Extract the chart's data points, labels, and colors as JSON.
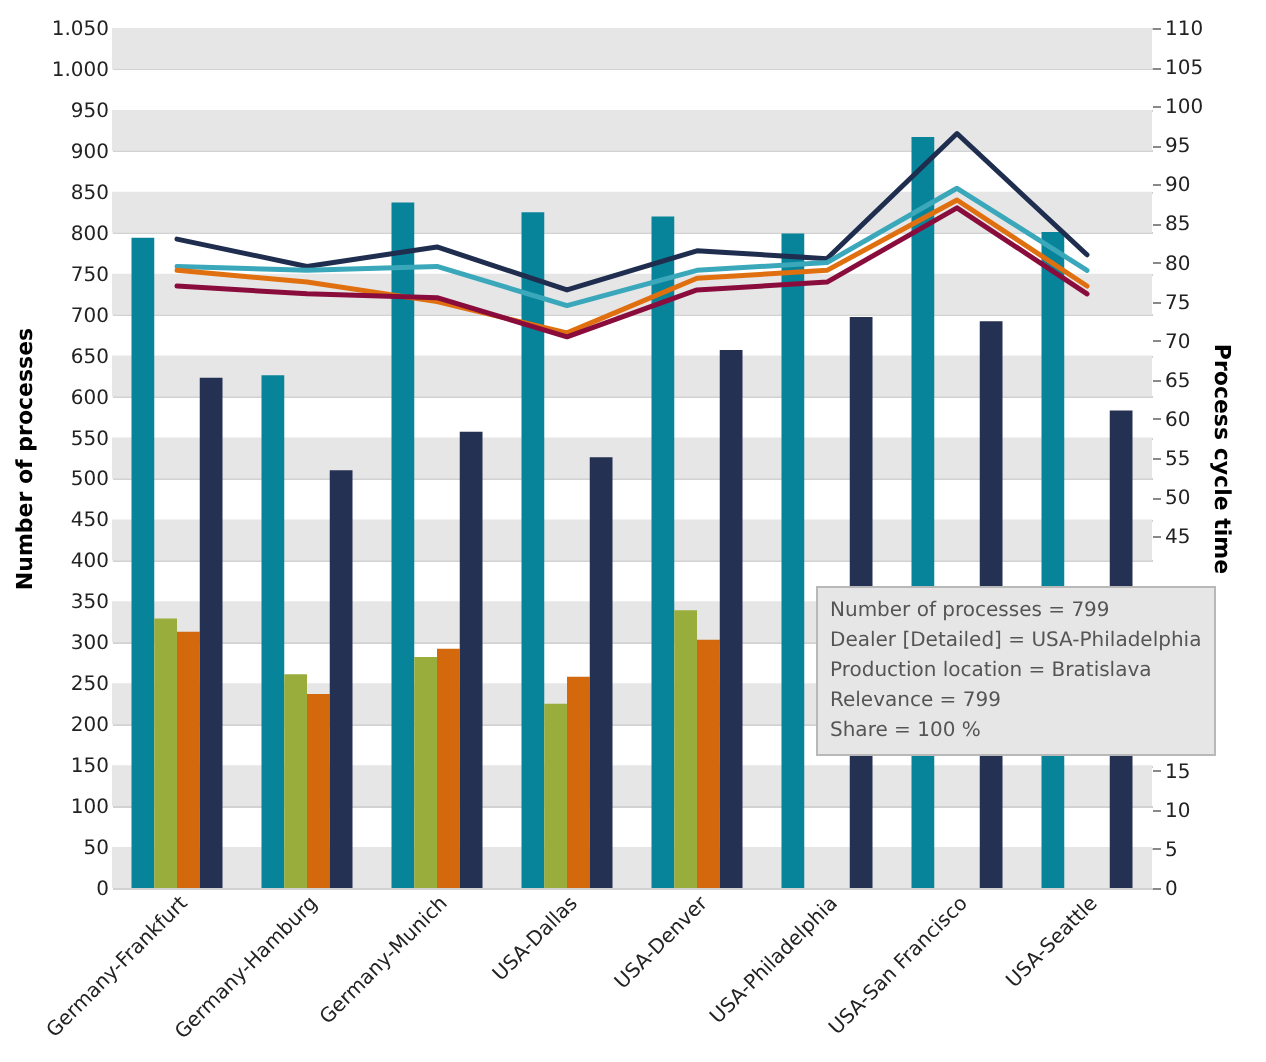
{
  "chart_data": {
    "type": "bar",
    "ylabel": "Number of processes",
    "y2label": "Process cycle time",
    "categories": [
      "Germany-Frankfurt",
      "Germany-Hamburg",
      "Germany-Munich",
      "USA-Dallas",
      "USA-Denver",
      "USA-Philadelphia",
      "USA-San Francisco",
      "USA-Seattle"
    ],
    "series": [
      {
        "type": "bar",
        "color": "#07849a",
        "values": [
          794,
          626,
          837,
          825,
          820,
          799,
          917,
          801
        ]
      },
      {
        "type": "bar",
        "color": "#98ad3c",
        "values": [
          329,
          261,
          282,
          225,
          339,
          null,
          null,
          null
        ]
      },
      {
        "type": "bar",
        "color": "#d4680c",
        "values": [
          313,
          237,
          292,
          258,
          303,
          null,
          null,
          null
        ]
      },
      {
        "type": "bar",
        "color": "#243152",
        "values": [
          623,
          510,
          557,
          526,
          657,
          697,
          692,
          583
        ]
      },
      {
        "type": "line",
        "axis": "y2",
        "color": "#1f2d4f",
        "values": [
          83,
          79.5,
          82,
          76.5,
          81.5,
          80.5,
          96.5,
          81
        ]
      },
      {
        "type": "line",
        "axis": "y2",
        "color": "#3aa8ba",
        "values": [
          79.5,
          79,
          79.5,
          74.5,
          79,
          80,
          89.5,
          79
        ]
      },
      {
        "type": "line",
        "axis": "y2",
        "color": "#e0700f",
        "values": [
          79,
          77.5,
          75,
          71,
          78,
          79,
          88,
          77
        ]
      },
      {
        "type": "line",
        "axis": "y2",
        "color": "#8a0c3c",
        "values": [
          77,
          76,
          75.5,
          70.5,
          76.5,
          77.5,
          87,
          76
        ]
      }
    ],
    "ylim": [
      0,
      1050
    ],
    "yticks": [
      0,
      50,
      100,
      150,
      200,
      250,
      300,
      350,
      400,
      450,
      500,
      550,
      600,
      650,
      700,
      750,
      800,
      850,
      900,
      950,
      {
        "value": 1000,
        "label": "1.000"
      },
      {
        "value": 1050,
        "label": "1.050"
      }
    ],
    "y2lim": [
      0,
      110
    ],
    "y2ticks": [
      0,
      5,
      10,
      15,
      45,
      50,
      55,
      60,
      65,
      70,
      75,
      80,
      85,
      90,
      95,
      100,
      105,
      110
    ],
    "grid": "y",
    "annotations": [
      "Number of processes = 799",
      "Dealer [Detailed] = USA-Philadelphia",
      "Production location = Bratislava",
      "Relevance = 799",
      "Share = 100 %"
    ]
  }
}
